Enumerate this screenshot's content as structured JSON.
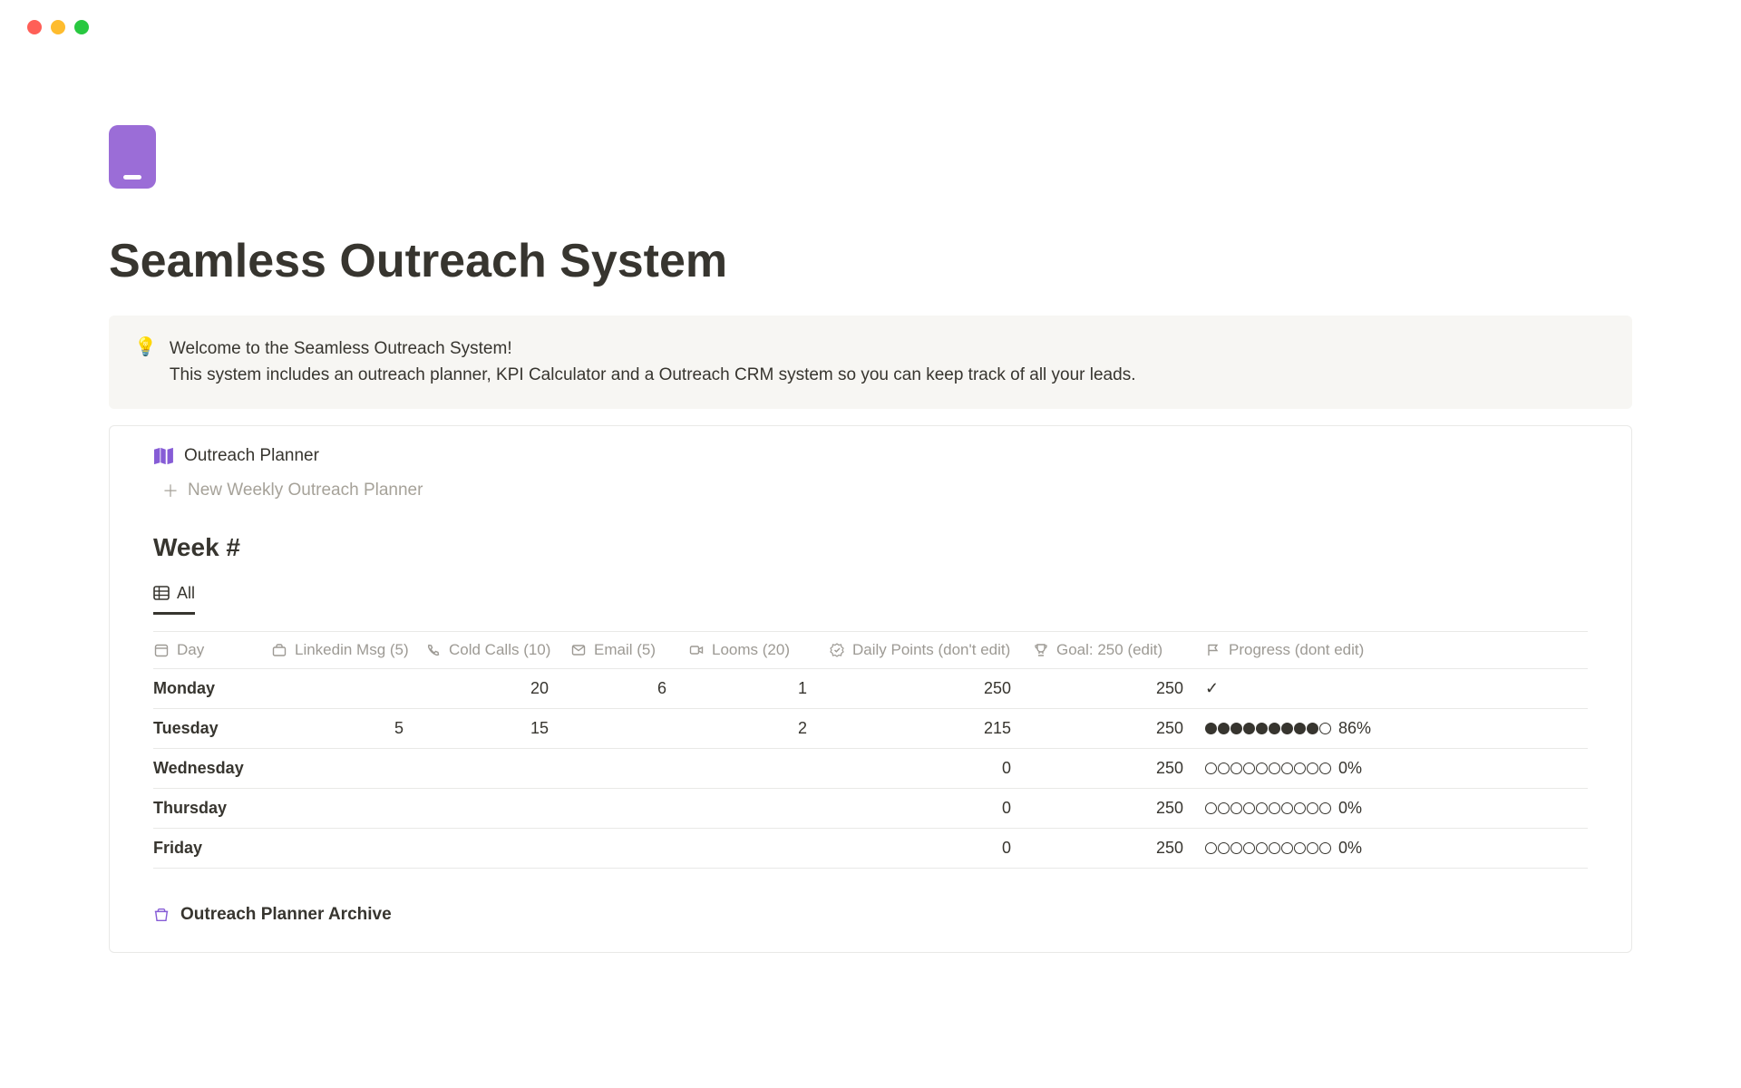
{
  "page": {
    "title": "Seamless Outreach System",
    "icon_color": "#9b6dd7"
  },
  "callout": {
    "icon": "💡",
    "line1": "Welcome to the Seamless Outreach System!",
    "line2": "This system includes an outreach planner, KPI Calculator and a Outreach CRM system so you can keep track of all your leads."
  },
  "planner": {
    "title": "Outreach Planner",
    "new_button": "New Weekly Outreach Planner",
    "section_title": "Week #",
    "tab_all": "All",
    "archive_label": "Outreach Planner Archive",
    "columns": {
      "day": "Day",
      "linkedin": "Linkedin Msg (5)",
      "cold_calls": "Cold Calls (10)",
      "email": "Email (5)",
      "looms": "Looms (20)",
      "daily_points": "Daily Points (don't edit)",
      "goal": "Goal: 250 (edit)",
      "progress": "Progress (dont edit)"
    },
    "rows": [
      {
        "day": "Monday",
        "linkedin": "",
        "cold_calls": "20",
        "email": "6",
        "looms": "1",
        "daily_points": "250",
        "goal": "250",
        "progress_type": "check",
        "progress_pct": 100,
        "progress_label": ""
      },
      {
        "day": "Tuesday",
        "linkedin": "5",
        "cold_calls": "15",
        "email": "",
        "looms": "2",
        "daily_points": "215",
        "goal": "250",
        "progress_type": "dots",
        "progress_pct": 86,
        "progress_label": "86%"
      },
      {
        "day": "Wednesday",
        "linkedin": "",
        "cold_calls": "",
        "email": "",
        "looms": "",
        "daily_points": "0",
        "goal": "250",
        "progress_type": "dots",
        "progress_pct": 0,
        "progress_label": "0%"
      },
      {
        "day": "Thursday",
        "linkedin": "",
        "cold_calls": "",
        "email": "",
        "looms": "",
        "daily_points": "0",
        "goal": "250",
        "progress_type": "dots",
        "progress_pct": 0,
        "progress_label": "0%"
      },
      {
        "day": "Friday",
        "linkedin": "",
        "cold_calls": "",
        "email": "",
        "looms": "",
        "daily_points": "0",
        "goal": "250",
        "progress_type": "dots",
        "progress_pct": 0,
        "progress_label": "0%"
      }
    ]
  },
  "colors": {
    "text": "#37352f",
    "muted": "#9d9a94",
    "border": "#e9e9e7",
    "callout_bg": "#f7f6f3",
    "accent_purple": "#865cd6",
    "traffic_red": "#ff5f57",
    "traffic_yellow": "#febc2e",
    "traffic_green": "#28c840"
  }
}
